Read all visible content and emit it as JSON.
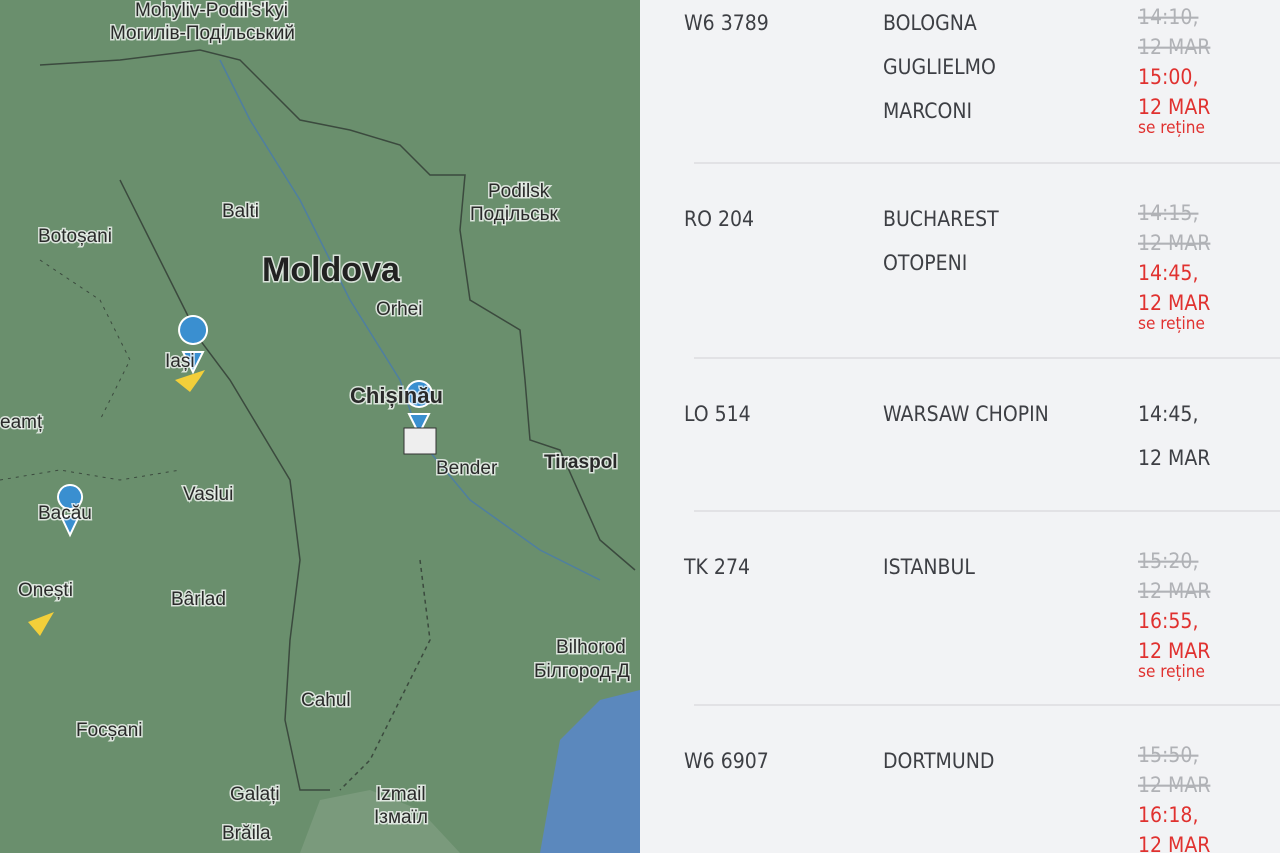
{
  "map": {
    "labels": [
      "Mohyliv-Podil's'kyi",
      "Могилів-Подільський",
      "Podilsk",
      "Подільськ",
      "Balti",
      "Botoșani",
      "Moldova",
      "Orhei",
      "Iași",
      "Chișinău",
      "Bender",
      "Tiraspol",
      "eamț",
      "Vaslui",
      "Bacău",
      "Onești",
      "Bârlad",
      "Bilhorod",
      "Білгород-Д",
      "Cahul",
      "Focșani",
      "Galați",
      "Izmail",
      "Ізмаїл",
      "Brăila"
    ]
  },
  "flights": [
    {
      "flight": "W6 3789",
      "destination": [
        "BOLOGNA",
        "GUGLIELMO",
        "MARCONI"
      ],
      "scheduled": [
        "14:10,",
        "12 MAR"
      ],
      "revised": [
        "15:00,",
        "12 MAR"
      ],
      "status": "se reține"
    },
    {
      "flight": "RO 204",
      "destination": [
        "BUCHAREST",
        "OTOPENI"
      ],
      "scheduled": [
        "14:15,",
        "12 MAR"
      ],
      "revised": [
        "14:45,",
        "12 MAR"
      ],
      "status": "se reține"
    },
    {
      "flight": "LO 514",
      "destination": [
        "WARSAW CHOPIN"
      ],
      "time": [
        "14:45,",
        "12 MAR"
      ]
    },
    {
      "flight": "TK 274",
      "destination": [
        "ISTANBUL"
      ],
      "scheduled": [
        "15:20,",
        "12 MAR"
      ],
      "revised": [
        "16:55,",
        "12 MAR"
      ],
      "status": "se reține"
    },
    {
      "flight": "W6 6907",
      "destination": [
        "DORTMUND"
      ],
      "scheduled": [
        "15:50,",
        "12 MAR"
      ],
      "revised": [
        "16:18,",
        "12 MAR"
      ]
    }
  ]
}
